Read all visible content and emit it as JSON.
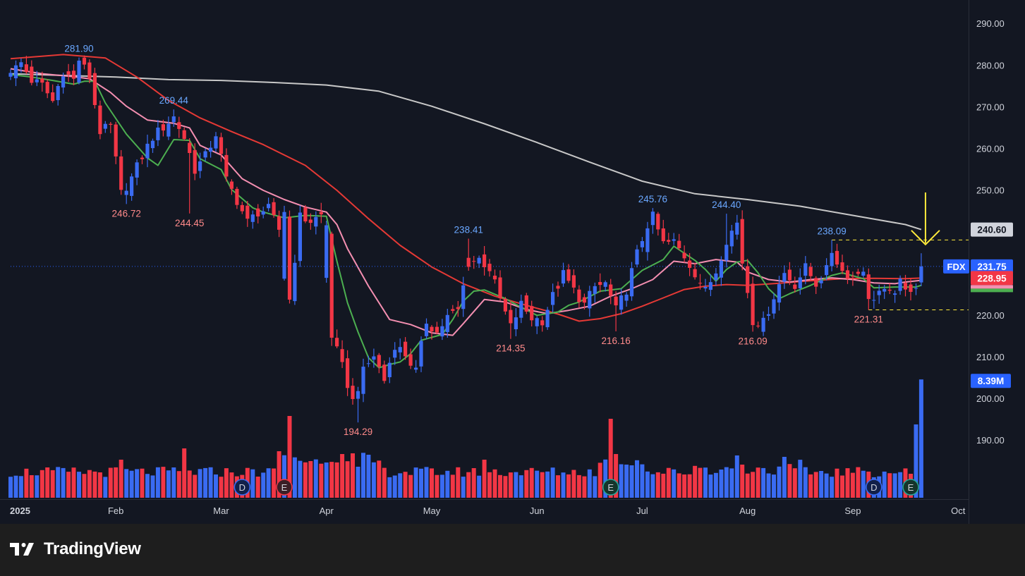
{
  "brand": {
    "name": "TradingView",
    "icon": "tradingview-logo-icon"
  },
  "colors": {
    "background": "#131722",
    "frame": "#1e1e1e",
    "up": "#3a6bf2",
    "down": "#f23645",
    "ma_fast": "#4caf50",
    "ma_mid": "#f48fb1",
    "ma_slow": "#e53935",
    "ma_long": "#c8c8c8",
    "high_label": "#6aa7ff",
    "low_label": "#ff8a8a",
    "annotation": "#ffeb3b"
  },
  "chart_data": {
    "type": "candlestick",
    "symbol": "FDX",
    "y_axis": {
      "min": 184.5,
      "max": 293,
      "ticks": [
        "290.00",
        "280.00",
        "270.00",
        "260.00",
        "250.00",
        "240.00",
        "230.00",
        "220.00",
        "210.00",
        "200.00",
        "190.00"
      ]
    },
    "x_axis": {
      "labels": [
        {
          "text": "2025",
          "bar": 0
        },
        {
          "text": "Feb",
          "bar": 20
        },
        {
          "text": "Mar",
          "bar": 40
        },
        {
          "text": "Apr",
          "bar": 60
        },
        {
          "text": "May",
          "bar": 80
        },
        {
          "text": "Jun",
          "bar": 100
        },
        {
          "text": "Jul",
          "bar": 120
        },
        {
          "text": "Aug",
          "bar": 140
        },
        {
          "text": "Sep",
          "bar": 160
        },
        {
          "text": "Oct",
          "bar": 180
        }
      ]
    },
    "price_badges": [
      {
        "label": "",
        "value": "240.60",
        "price": 240.6,
        "bg": "#d1d4dc",
        "fg": "#131722"
      },
      {
        "label": "FDX",
        "value": "231.75",
        "price": 231.75,
        "bg": "#2962ff",
        "fg": "#ffffff"
      },
      {
        "label": "",
        "value": "228.95",
        "price": 228.95,
        "bg": "#f23645",
        "fg": "#ffffff"
      }
    ],
    "volume_badge": "8.39M",
    "high_low_labels": [
      {
        "text": "281.90",
        "bar": 13,
        "price": 281.9,
        "kind": "high"
      },
      {
        "text": "269.44",
        "bar": 31,
        "price": 269.44,
        "kind": "high"
      },
      {
        "text": "246.72",
        "bar": 22,
        "price": 246.72,
        "kind": "low"
      },
      {
        "text": "244.45",
        "bar": 34,
        "price": 244.45,
        "kind": "low"
      },
      {
        "text": "238.41",
        "bar": 87,
        "price": 238.41,
        "kind": "high"
      },
      {
        "text": "194.29",
        "bar": 66,
        "price": 194.29,
        "kind": "low"
      },
      {
        "text": "214.35",
        "bar": 95,
        "price": 214.35,
        "kind": "low"
      },
      {
        "text": "216.16",
        "bar": 115,
        "price": 216.16,
        "kind": "low"
      },
      {
        "text": "245.76",
        "bar": 122,
        "price": 245.76,
        "kind": "high"
      },
      {
        "text": "244.40",
        "bar": 136,
        "price": 244.4,
        "kind": "high"
      },
      {
        "text": "216.09",
        "bar": 141,
        "price": 216.09,
        "kind": "low"
      },
      {
        "text": "238.09",
        "bar": 156,
        "price": 238.09,
        "kind": "high"
      },
      {
        "text": "221.31",
        "bar": 163,
        "price": 221.31,
        "kind": "low"
      }
    ],
    "levels": [
      {
        "price": 238.09,
        "from_bar": 156,
        "color": "#ffeb3b",
        "style": "dashed"
      },
      {
        "price": 221.31,
        "from_bar": 163,
        "color": "#ffeb3b",
        "style": "dashed"
      },
      {
        "price": 231.75,
        "from_bar": 0,
        "color": "#2962ff",
        "style": "dotted"
      }
    ],
    "arrow_annotation": {
      "bar": 173,
      "from_price": 249.5,
      "to_price": 237.0
    },
    "events": [
      {
        "letter": "D",
        "bar": 44,
        "type": "dividend"
      },
      {
        "letter": "E",
        "bar": 52,
        "type": "earnings"
      },
      {
        "letter": "E",
        "bar": 114,
        "type": "earnings"
      },
      {
        "letter": "D",
        "bar": 164,
        "type": "dividend"
      },
      {
        "letter": "E",
        "bar": 171,
        "type": "earnings"
      }
    ],
    "moving_averages": [
      {
        "key": "ma_long",
        "points": [
          [
            0,
            278.0
          ],
          [
            10,
            277.6
          ],
          [
            20,
            277.2
          ],
          [
            30,
            276.6
          ],
          [
            40,
            276.4
          ],
          [
            50,
            275.9
          ],
          [
            60,
            275.3
          ],
          [
            70,
            273.8
          ],
          [
            80,
            270.2
          ],
          [
            90,
            266.0
          ],
          [
            100,
            261.5
          ],
          [
            110,
            256.8
          ],
          [
            120,
            252.2
          ],
          [
            130,
            249.2
          ],
          [
            140,
            247.8
          ],
          [
            150,
            246.2
          ],
          [
            160,
            244.0
          ],
          [
            170,
            241.8
          ],
          [
            173,
            240.6
          ]
        ]
      },
      {
        "key": "ma_slow",
        "points": [
          [
            0,
            281.6
          ],
          [
            10,
            282.6
          ],
          [
            18,
            281.8
          ],
          [
            24,
            277.2
          ],
          [
            30,
            271.6
          ],
          [
            36,
            267.4
          ],
          [
            42,
            264.1
          ],
          [
            48,
            261.0
          ],
          [
            56,
            256.0
          ],
          [
            62,
            250.0
          ],
          [
            68,
            243.2
          ],
          [
            74,
            236.8
          ],
          [
            80,
            231.6
          ],
          [
            86,
            227.6
          ],
          [
            92,
            224.6
          ],
          [
            98,
            222.4
          ],
          [
            104,
            220.3
          ],
          [
            108,
            218.6
          ],
          [
            112,
            219.2
          ],
          [
            116,
            220.4
          ],
          [
            120,
            222.2
          ],
          [
            124,
            224.2
          ],
          [
            128,
            226.2
          ],
          [
            132,
            227.0
          ],
          [
            136,
            227.4
          ],
          [
            140,
            227.2
          ],
          [
            146,
            227.7
          ],
          [
            152,
            228.3
          ],
          [
            158,
            228.8
          ],
          [
            164,
            228.9
          ],
          [
            170,
            228.8
          ],
          [
            173,
            228.95
          ]
        ]
      },
      {
        "key": "ma_mid",
        "points": [
          [
            0,
            279.2
          ],
          [
            6,
            278.0
          ],
          [
            12,
            277.3
          ],
          [
            15,
            276.8
          ],
          [
            19,
            273.5
          ],
          [
            22,
            270.2
          ],
          [
            26,
            266.9
          ],
          [
            31,
            266.1
          ],
          [
            34,
            265.0
          ],
          [
            36,
            260.8
          ],
          [
            40,
            258.5
          ],
          [
            44,
            252.8
          ],
          [
            48,
            250.0
          ],
          [
            52,
            247.8
          ],
          [
            56,
            246.0
          ],
          [
            60,
            244.8
          ],
          [
            62,
            241.8
          ],
          [
            64,
            236.0
          ],
          [
            68,
            227.0
          ],
          [
            72,
            219.0
          ],
          [
            76,
            217.8
          ],
          [
            80,
            215.8
          ],
          [
            84,
            215.2
          ],
          [
            86,
            218.0
          ],
          [
            90,
            223.8
          ],
          [
            94,
            223.2
          ],
          [
            98,
            221.4
          ],
          [
            102,
            220.4
          ],
          [
            106,
            221.2
          ],
          [
            110,
            222.2
          ],
          [
            114,
            224.6
          ],
          [
            118,
            226.4
          ],
          [
            122,
            228.6
          ],
          [
            126,
            233.0
          ],
          [
            130,
            232.4
          ],
          [
            134,
            233.4
          ],
          [
            138,
            232.8
          ],
          [
            140,
            230.4
          ],
          [
            144,
            228.6
          ],
          [
            148,
            228.0
          ],
          [
            152,
            228.6
          ],
          [
            156,
            229.0
          ],
          [
            160,
            228.6
          ],
          [
            164,
            227.8
          ],
          [
            168,
            227.6
          ],
          [
            170,
            228.0
          ],
          [
            173,
            228.4
          ]
        ]
      },
      {
        "key": "ma_fast",
        "points": [
          [
            0,
            277.8
          ],
          [
            4,
            277.2
          ],
          [
            8,
            276.4
          ],
          [
            12,
            275.5
          ],
          [
            14,
            276.2
          ],
          [
            16,
            276.2
          ],
          [
            18,
            271.0
          ],
          [
            22,
            263.5
          ],
          [
            26,
            257.8
          ],
          [
            28,
            256.0
          ],
          [
            31,
            262.2
          ],
          [
            34,
            262.0
          ],
          [
            36,
            257.6
          ],
          [
            40,
            255.0
          ],
          [
            42,
            250.2
          ],
          [
            46,
            245.8
          ],
          [
            48,
            244.8
          ],
          [
            52,
            243.4
          ],
          [
            56,
            244.0
          ],
          [
            60,
            243.8
          ],
          [
            62,
            233.0
          ],
          [
            64,
            223.0
          ],
          [
            66,
            216.0
          ],
          [
            68,
            209.8
          ],
          [
            70,
            207.4
          ],
          [
            72,
            208.2
          ],
          [
            74,
            208.8
          ],
          [
            76,
            210.8
          ],
          [
            78,
            214.0
          ],
          [
            82,
            215.4
          ],
          [
            84,
            219.0
          ],
          [
            86,
            223.4
          ],
          [
            88,
            225.8
          ],
          [
            90,
            226.1
          ],
          [
            94,
            224.0
          ],
          [
            96,
            222.6
          ],
          [
            100,
            220.0
          ],
          [
            104,
            220.8
          ],
          [
            106,
            222.4
          ],
          [
            108,
            223.2
          ],
          [
            112,
            225.8
          ],
          [
            116,
            226.4
          ],
          [
            120,
            230.8
          ],
          [
            124,
            233.4
          ],
          [
            126,
            236.6
          ],
          [
            130,
            233.2
          ],
          [
            132,
            231.0
          ],
          [
            134,
            228.2
          ],
          [
            136,
            231.0
          ],
          [
            138,
            232.8
          ],
          [
            140,
            233.2
          ],
          [
            142,
            230.2
          ],
          [
            144,
            226.4
          ],
          [
            146,
            224.0
          ],
          [
            148,
            225.2
          ],
          [
            152,
            227.2
          ],
          [
            156,
            229.6
          ],
          [
            158,
            230.2
          ],
          [
            162,
            228.8
          ],
          [
            164,
            226.6
          ],
          [
            168,
            226.8
          ],
          [
            172,
            226.8
          ],
          [
            173,
            227.2
          ]
        ]
      }
    ],
    "anchors": [
      [
        0,
        278.2
      ],
      [
        2,
        280.6
      ],
      [
        4,
        276.4
      ],
      [
        6,
        275.2
      ],
      [
        8,
        271.4
      ],
      [
        10,
        278.6
      ],
      [
        12,
        276.5
      ],
      [
        13,
        281.4
      ],
      [
        15,
        277.2
      ],
      [
        17,
        264.2
      ],
      [
        19,
        265.2
      ],
      [
        21,
        249.2
      ],
      [
        23,
        253.0
      ],
      [
        25,
        258.2
      ],
      [
        27,
        262.8
      ],
      [
        29,
        265.2
      ],
      [
        31,
        267.6
      ],
      [
        33,
        262.6
      ],
      [
        35,
        255.0
      ],
      [
        37,
        258.2
      ],
      [
        39,
        263.6
      ],
      [
        41,
        252.4
      ],
      [
        43,
        247.6
      ],
      [
        45,
        242.4
      ],
      [
        47,
        244.8
      ],
      [
        49,
        245.5
      ],
      [
        51,
        240.6
      ],
      [
        52,
        245.2
      ],
      [
        53,
        223.8
      ],
      [
        55,
        243.6
      ],
      [
        57,
        242.6
      ],
      [
        59,
        244.0
      ],
      [
        60,
        241.6
      ],
      [
        61,
        215.2
      ],
      [
        63,
        207.6
      ],
      [
        65,
        199.4
      ],
      [
        67,
        206.4
      ],
      [
        69,
        210.4
      ],
      [
        71,
        204.4
      ],
      [
        73,
        213.0
      ],
      [
        75,
        210.6
      ],
      [
        77,
        206.6
      ],
      [
        79,
        218.6
      ],
      [
        81,
        215.8
      ],
      [
        83,
        219.6
      ],
      [
        85,
        221.2
      ],
      [
        87,
        232.6
      ],
      [
        89,
        233.6
      ],
      [
        91,
        231.2
      ],
      [
        93,
        223.8
      ],
      [
        95,
        217.2
      ],
      [
        97,
        222.6
      ],
      [
        99,
        219.4
      ],
      [
        101,
        218.8
      ],
      [
        103,
        224.6
      ],
      [
        105,
        229.8
      ],
      [
        107,
        226.0
      ],
      [
        109,
        222.6
      ],
      [
        111,
        226.8
      ],
      [
        113,
        227.6
      ],
      [
        115,
        221.2
      ],
      [
        117,
        226.2
      ],
      [
        119,
        234.8
      ],
      [
        121,
        241.8
      ],
      [
        122,
        243.6
      ],
      [
        124,
        237.2
      ],
      [
        126,
        237.6
      ],
      [
        128,
        234.2
      ],
      [
        130,
        230.2
      ],
      [
        132,
        225.8
      ],
      [
        134,
        230.6
      ],
      [
        136,
        238.2
      ],
      [
        138,
        242.2
      ],
      [
        139,
        232.8
      ],
      [
        141,
        218.8
      ],
      [
        143,
        218.2
      ],
      [
        145,
        224.6
      ],
      [
        147,
        230.2
      ],
      [
        149,
        227.4
      ],
      [
        151,
        231.4
      ],
      [
        153,
        227.6
      ],
      [
        155,
        230.8
      ],
      [
        156,
        235.4
      ],
      [
        158,
        230.6
      ],
      [
        160,
        229.2
      ],
      [
        162,
        231.4
      ],
      [
        163,
        223.2
      ],
      [
        165,
        225.8
      ],
      [
        167,
        224.8
      ],
      [
        169,
        227.6
      ],
      [
        170,
        225.6
      ],
      [
        171,
        226.6
      ],
      [
        172,
        227.4
      ],
      [
        173,
        231.75
      ]
    ],
    "volume": [
      {
        "bar": 53,
        "value": 5.8
      },
      {
        "bar": 60,
        "value": 2.5
      },
      {
        "bar": 63,
        "value": 3.1
      },
      {
        "bar": 66,
        "value": 2.2
      },
      {
        "bar": 114,
        "value": 5.6
      },
      {
        "bar": 115,
        "value": 3.1
      },
      {
        "bar": 172,
        "value": 5.2
      },
      {
        "bar": 173,
        "value": 8.39
      }
    ]
  }
}
